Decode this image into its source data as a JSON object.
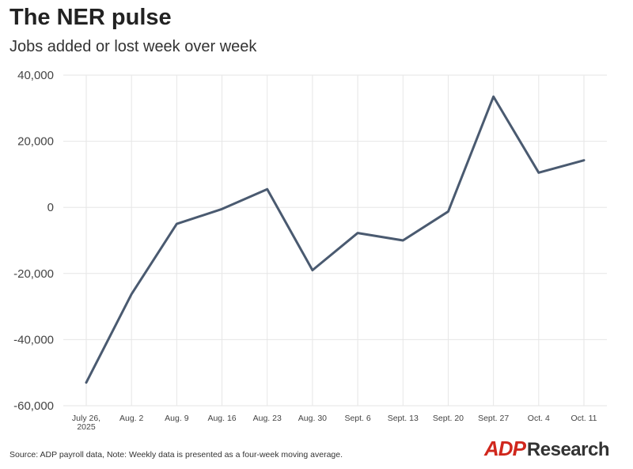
{
  "chart_data": {
    "type": "line",
    "title": "The NER pulse",
    "subtitle": "Jobs added or lost week over week",
    "categories": [
      [
        "July 26,",
        "2025"
      ],
      [
        "Aug. 2"
      ],
      [
        "Aug. 9"
      ],
      [
        "Aug. 16"
      ],
      [
        "Aug. 23"
      ],
      [
        "Aug. 30"
      ],
      [
        "Sept. 6"
      ],
      [
        "Sept. 13"
      ],
      [
        "Sept. 20"
      ],
      [
        "Sept. 27"
      ],
      [
        "Oct. 4"
      ],
      [
        "Oct. 11"
      ]
    ],
    "series": [
      {
        "values": [
          -53000,
          -26250,
          -5000,
          -500,
          5500,
          -19000,
          -7750,
          -10000,
          -1250,
          33500,
          10500,
          14250
        ],
        "color": "#4a5a70"
      }
    ],
    "ylim": [
      -60000,
      40000
    ],
    "yticks": [
      40000,
      20000,
      0,
      -20000,
      -40000,
      -60000
    ],
    "ytick_labels": [
      "40,000",
      "20,000",
      "0",
      "-20,000",
      "-40,000",
      "-60,000"
    ],
    "grid": true,
    "xlabel": "",
    "ylabel": ""
  },
  "footer": {
    "source": "Source: ADP payroll data, Note: Weekly data is presented as a four-week moving average."
  },
  "brand": {
    "adp": "ADP",
    "research": "Research"
  }
}
